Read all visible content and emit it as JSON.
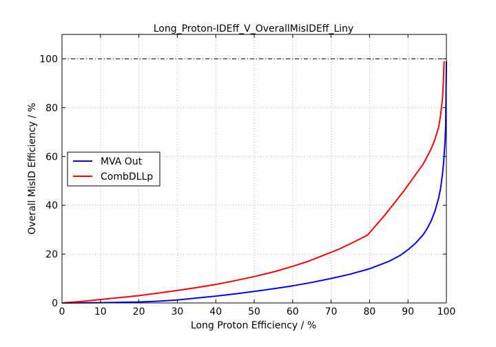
{
  "chart_data": {
    "type": "line",
    "title": "Long_Proton-IDEff_V_OverallMisIDEff_Liny",
    "xlabel": "Long Proton Efficiency / %",
    "ylabel": "Overall MisID Efficiency / %",
    "xlim": [
      0,
      100
    ],
    "ylim": [
      0,
      110
    ],
    "xticks": [
      "0",
      "10",
      "20",
      "30",
      "40",
      "50",
      "60",
      "70",
      "80",
      "90",
      "100"
    ],
    "yticks": [
      "0",
      "20",
      "40",
      "60",
      "80",
      "100"
    ],
    "xtick_values": [
      0,
      10,
      20,
      30,
      40,
      50,
      60,
      70,
      80,
      90,
      100
    ],
    "ytick_values": [
      0,
      20,
      40,
      60,
      80,
      100
    ],
    "grid": true,
    "reference_line_y": 100,
    "legend_position": "center-left",
    "series": [
      {
        "name": "MVA Out",
        "color": "#0000ff",
        "x": [
          0,
          10,
          20,
          25,
          30,
          35,
          40,
          45,
          50,
          55,
          60,
          65,
          70,
          75,
          80,
          85,
          88,
          90,
          92,
          94,
          95,
          96,
          97,
          98,
          98.5,
          99,
          99.3,
          99.6,
          99.8,
          100
        ],
        "y": [
          0,
          0.1,
          0.4,
          0.7,
          1.2,
          2.0,
          2.8,
          3.7,
          4.7,
          5.8,
          7.0,
          8.4,
          10.0,
          11.8,
          14.0,
          17.0,
          19.5,
          21.8,
          24.5,
          28.0,
          30.5,
          33.5,
          37.5,
          43.0,
          47.0,
          53.0,
          58.0,
          65.0,
          72.0,
          99.0
        ]
      },
      {
        "name": "CombDLLp",
        "color": "#ff0000",
        "x": [
          0,
          5,
          10,
          15,
          20,
          25,
          30,
          35,
          40,
          45,
          50,
          55,
          60,
          64,
          68,
          72,
          76,
          79.5,
          84,
          89,
          94,
          96,
          97,
          98,
          98.5,
          99,
          99.2,
          99.4
        ],
        "y": [
          0,
          0.6,
          1.4,
          2.2,
          3.0,
          4.0,
          5.1,
          6.3,
          7.6,
          9.1,
          10.8,
          12.7,
          15.0,
          17.0,
          19.5,
          22.0,
          25.0,
          27.8,
          36.0,
          46.0,
          57.0,
          63.0,
          67.0,
          72.0,
          77.0,
          84.0,
          90.0,
          99.0
        ]
      }
    ]
  }
}
